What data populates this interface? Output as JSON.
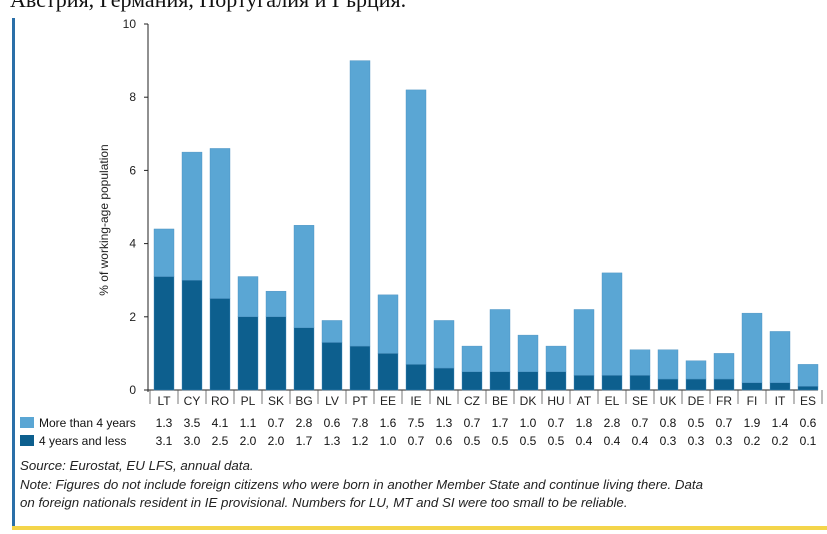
{
  "header_text": "Австрия, Германия, Португалия и Гърция.",
  "chart_data": {
    "type": "bar",
    "stacked": true,
    "ylabel": "% of working-age population",
    "ylim": [
      0,
      10
    ],
    "yticks": [
      0,
      2,
      4,
      6,
      8,
      10
    ],
    "grid": false,
    "legend_placement": "table-below",
    "categories": [
      "LT",
      "CY",
      "RO",
      "PL",
      "SK",
      "BG",
      "LV",
      "PT",
      "EE",
      "IE",
      "NL",
      "CZ",
      "BE",
      "DK",
      "HU",
      "AT",
      "EL",
      "SE",
      "UK",
      "DE",
      "FR",
      "FI",
      "IT",
      "ES"
    ],
    "series": [
      {
        "name": "4 years and less",
        "color": "#0d5f8e",
        "values": [
          3.1,
          3.0,
          2.5,
          2.0,
          2.0,
          1.7,
          1.3,
          1.2,
          1.0,
          0.7,
          0.6,
          0.5,
          0.5,
          0.5,
          0.5,
          0.4,
          0.4,
          0.4,
          0.3,
          0.3,
          0.3,
          0.2,
          0.2,
          0.1
        ]
      },
      {
        "name": "More than 4 years",
        "color": "#5aa6d4",
        "values": [
          1.3,
          3.5,
          4.1,
          1.1,
          0.7,
          2.8,
          0.6,
          7.8,
          1.6,
          7.5,
          1.3,
          0.7,
          1.7,
          1.0,
          0.7,
          1.8,
          2.8,
          0.7,
          0.8,
          0.5,
          0.7,
          1.9,
          1.4,
          0.6
        ]
      }
    ],
    "table_rows": [
      {
        "label": "More than 4 years",
        "series_index": 1
      },
      {
        "label": "4 years and less",
        "series_index": 0
      }
    ]
  },
  "source": "Source: Eurostat, EU LFS, annual data.",
  "note_line1": "Note: Figures do not include foreign citizens who were born in another Member State and continue living there. Data",
  "note_line2": "on foreign nationals resident in IE provisional. Numbers for LU, MT and SI were too small to be reliable."
}
